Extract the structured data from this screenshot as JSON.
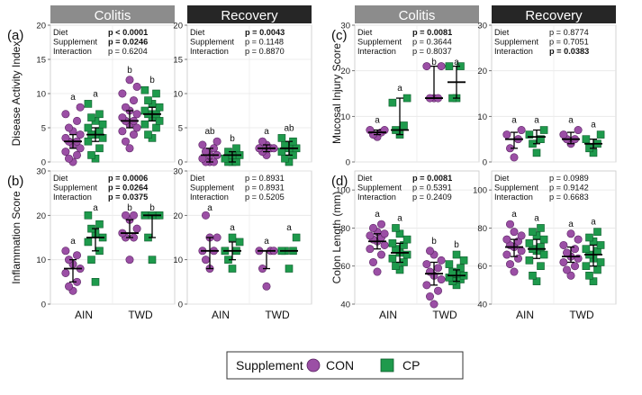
{
  "colors": {
    "con": "#9b4fa5",
    "con_edge": "#5a2363",
    "cp": "#1e9a4c",
    "cp_edge": "#0c5a2a",
    "colitis_header": "#8c8c8c",
    "recovery_header": "#262626"
  },
  "headers": {
    "colitis": "Colitis",
    "recovery": "Recovery"
  },
  "x_groups": [
    "AIN",
    "TWD"
  ],
  "legend": {
    "title": "Supplement",
    "con": "CON",
    "cp": "CP"
  },
  "chart_data": [
    {
      "id": "dai",
      "panel_label": "(a)",
      "type": "scatter",
      "ylabel": "Disease Activity Index",
      "ylim": [
        0,
        20
      ],
      "yticks": [
        0,
        5,
        10,
        15,
        20
      ],
      "stats": {
        "colitis": [
          {
            "label": "Diet",
            "value": "p < 0.0001",
            "style": "bold-italic"
          },
          {
            "label": "Supplement",
            "value": "p = 0.0246",
            "style": "bold-italic"
          },
          {
            "label": "Interaction",
            "value": "p = 0.6204",
            "style": "italic"
          }
        ],
        "recovery": [
          {
            "label": "Diet",
            "value": "p = 0.0043",
            "style": "bold"
          },
          {
            "label": "Supplement",
            "value": "p = 0.1148",
            "style": "normal"
          },
          {
            "label": "Interaction",
            "value": "p = 0.8870",
            "style": "normal"
          }
        ]
      },
      "series": {
        "colitis": [
          {
            "diet": "AIN",
            "supp": "CON",
            "median": 3,
            "q1": 2,
            "q3": 4,
            "letter": "a",
            "values": [
              0,
              0.5,
              1,
              1.5,
              2,
              2.5,
              3,
              3,
              3.5,
              4,
              4.5,
              5,
              6,
              7,
              8
            ]
          },
          {
            "diet": "AIN",
            "supp": "CP",
            "median": 4,
            "q1": 3,
            "q3": 5,
            "letter": "a",
            "values": [
              0.5,
              1,
              2,
              3,
              3.5,
              4,
              4,
              4.5,
              5,
              5.5,
              6,
              6.5,
              7,
              8.5
            ]
          },
          {
            "diet": "TWD",
            "supp": "CON",
            "median": 6,
            "q1": 5,
            "q3": 7.5,
            "letter": "b",
            "values": [
              2,
              3,
              4,
              4.5,
              5,
              5.5,
              6,
              6,
              6.5,
              7,
              7.5,
              8,
              9,
              10,
              11,
              12
            ]
          },
          {
            "diet": "TWD",
            "supp": "CP",
            "median": 7,
            "q1": 6,
            "q3": 8,
            "letter": "b",
            "values": [
              3.5,
              4,
              5,
              5.5,
              6,
              6.5,
              7,
              7,
              7.5,
              8,
              8.5,
              9,
              10,
              10.5
            ]
          }
        ],
        "recovery": [
          {
            "diet": "AIN",
            "supp": "CON",
            "median": 1,
            "q1": 0,
            "q3": 2,
            "letter": "ab",
            "values": [
              0,
              0,
              0,
              0.5,
              1,
              1,
              1.5,
              2,
              2.5,
              3
            ]
          },
          {
            "diet": "AIN",
            "supp": "CP",
            "median": 1,
            "q1": 0,
            "q3": 1.5,
            "letter": "b",
            "values": [
              0,
              0,
              0,
              0.5,
              1,
              1,
              1.5,
              2
            ]
          },
          {
            "diet": "TWD",
            "supp": "CON",
            "median": 2,
            "q1": 1.5,
            "q3": 2.5,
            "letter": "a",
            "values": [
              1,
              1.5,
              2,
              2,
              2,
              2.5,
              3
            ]
          },
          {
            "diet": "TWD",
            "supp": "CP",
            "median": 2,
            "q1": 1,
            "q3": 3,
            "letter": "ab",
            "values": [
              0,
              0.5,
              1,
              1.5,
              2,
              2,
              2.5,
              3,
              3.5
            ]
          }
        ]
      }
    },
    {
      "id": "inflam",
      "panel_label": "(b)",
      "type": "scatter",
      "ylabel": "Inflammation Score",
      "ylim": [
        0,
        30
      ],
      "yticks": [
        0,
        10,
        20,
        30
      ],
      "stats": {
        "colitis": [
          {
            "label": "Diet",
            "value": "p = 0.0006",
            "style": "bold"
          },
          {
            "label": "Supplement",
            "value": "p = 0.0264",
            "style": "bold"
          },
          {
            "label": "Interaction",
            "value": "p = 0.0375",
            "style": "bold"
          }
        ],
        "recovery": [
          {
            "label": "Diet",
            "value": "p = 0.8931",
            "style": "normal"
          },
          {
            "label": "Supplement",
            "value": "p = 0.8931",
            "style": "normal"
          },
          {
            "label": "Interaction",
            "value": "p = 0.5205",
            "style": "normal"
          }
        ]
      },
      "series": {
        "colitis": [
          {
            "diet": "AIN",
            "supp": "CON",
            "median": 8,
            "q1": 5,
            "q3": 10,
            "letter": "a",
            "values": [
              3,
              4,
              5,
              7,
              8,
              9,
              10,
              11,
              12
            ]
          },
          {
            "diet": "AIN",
            "supp": "CP",
            "median": 15,
            "q1": 12,
            "q3": 17,
            "letter": "a",
            "values": [
              5,
              10,
              12,
              14,
              15,
              16,
              17,
              18,
              20
            ]
          },
          {
            "diet": "TWD",
            "supp": "CON",
            "median": 16,
            "q1": 15,
            "q3": 19,
            "letter": "b",
            "values": [
              10,
              15,
              15,
              16,
              17,
              19,
              20,
              20
            ]
          },
          {
            "diet": "TWD",
            "supp": "CP",
            "median": 20,
            "q1": 15,
            "q3": 20,
            "letter": "b",
            "values": [
              10,
              15,
              20,
              20,
              20,
              20
            ]
          }
        ],
        "recovery": [
          {
            "diet": "AIN",
            "supp": "CON",
            "median": 12,
            "q1": 8,
            "q3": 15,
            "letter": "a",
            "values": [
              8,
              10,
              12,
              12,
              15,
              15,
              20
            ]
          },
          {
            "diet": "AIN",
            "supp": "CP",
            "median": 12,
            "q1": 10,
            "q3": 14,
            "letter": "a",
            "values": [
              8,
              10,
              12,
              12,
              14,
              15
            ]
          },
          {
            "diet": "TWD",
            "supp": "CON",
            "median": 12,
            "q1": 8,
            "q3": 12,
            "letter": "a",
            "values": [
              4,
              8,
              12,
              12,
              12
            ]
          },
          {
            "diet": "TWD",
            "supp": "CP",
            "median": 12,
            "q1": 12,
            "q3": 12,
            "letter": "a",
            "values": [
              8,
              12,
              12,
              12,
              15
            ]
          }
        ]
      }
    },
    {
      "id": "mucosal",
      "panel_label": "(c)",
      "type": "scatter",
      "ylabel": "Mucosal Injury Score",
      "ylim": [
        0,
        30
      ],
      "yticks": [
        0,
        10,
        20,
        30
      ],
      "stats": {
        "colitis": [
          {
            "label": "Diet",
            "value": "p = 0.0081",
            "style": "bold"
          },
          {
            "label": "Supplement",
            "value": "p = 0.3644",
            "style": "normal"
          },
          {
            "label": "Interaction",
            "value": "p = 0.8037",
            "style": "normal"
          }
        ],
        "recovery": [
          {
            "label": "Diet",
            "value": "p = 0.8774",
            "style": "normal"
          },
          {
            "label": "Supplement",
            "value": "p = 0.7051",
            "style": "normal"
          },
          {
            "label": "Interaction",
            "value": "p = 0.0383",
            "style": "bold"
          }
        ]
      },
      "series": {
        "colitis": [
          {
            "diet": "AIN",
            "supp": "CON",
            "median": 6.5,
            "q1": 6,
            "q3": 7,
            "letter": "a",
            "values": [
              5.5,
              6,
              6.5,
              7,
              7
            ]
          },
          {
            "diet": "AIN",
            "supp": "CP",
            "median": 7,
            "q1": 6,
            "q3": 14,
            "letter": "a",
            "values": [
              6,
              7,
              8,
              13,
              14
            ]
          },
          {
            "diet": "TWD",
            "supp": "CON",
            "median": 14,
            "q1": 14,
            "q3": 21,
            "letter": "b",
            "values": [
              14,
              14,
              14,
              21,
              21
            ]
          },
          {
            "diet": "TWD",
            "supp": "CP",
            "median": 17.5,
            "q1": 14,
            "q3": 21,
            "letter": "a",
            "values": [
              14,
              14,
              21,
              21
            ]
          }
        ],
        "recovery": [
          {
            "diet": "AIN",
            "supp": "CON",
            "median": 5,
            "q1": 3,
            "q3": 6.5,
            "letter": "a",
            "values": [
              1,
              3,
              5,
              6,
              7
            ]
          },
          {
            "diet": "AIN",
            "supp": "CP",
            "median": 5.5,
            "q1": 4,
            "q3": 7,
            "letter": "a",
            "values": [
              2,
              4,
              5,
              6,
              7
            ]
          },
          {
            "diet": "TWD",
            "supp": "CON",
            "median": 5,
            "q1": 4,
            "q3": 6.5,
            "letter": "a",
            "values": [
              4,
              5,
              5,
              6,
              7
            ]
          },
          {
            "diet": "TWD",
            "supp": "CP",
            "median": 4,
            "q1": 3,
            "q3": 5,
            "letter": "a",
            "values": [
              2,
              3,
              4,
              5,
              6
            ]
          }
        ]
      }
    },
    {
      "id": "colon",
      "panel_label": "(d)",
      "type": "scatter",
      "ylabel": "Colon Length (mm)",
      "ylim": [
        40,
        110
      ],
      "yticks": [
        40,
        60,
        80,
        100
      ],
      "stats": {
        "colitis": [
          {
            "label": "Diet",
            "value": "p = 0.0081",
            "style": "bold"
          },
          {
            "label": "Supplement",
            "value": "p = 0.5391",
            "style": "normal"
          },
          {
            "label": "Interaction",
            "value": "p = 0.2409",
            "style": "normal"
          }
        ],
        "recovery": [
          {
            "label": "Diet",
            "value": "p = 0.0989",
            "style": "normal"
          },
          {
            "label": "Supplement",
            "value": "p = 0.9142",
            "style": "normal"
          },
          {
            "label": "Interaction",
            "value": "p = 0.6683",
            "style": "normal"
          }
        ]
      },
      "series": {
        "colitis": [
          {
            "diet": "AIN",
            "supp": "CON",
            "median": 73,
            "q1": 69,
            "q3": 77,
            "letter": "a",
            "values": [
              57,
              62,
              66,
              69,
              71,
              73,
              74,
              75,
              76,
              77,
              78,
              80,
              82
            ]
          },
          {
            "diet": "AIN",
            "supp": "CP",
            "median": 67,
            "q1": 62,
            "q3": 72,
            "letter": "a",
            "values": [
              58,
              60,
              62,
              64,
              66,
              67,
              69,
              71,
              72,
              74,
              77,
              80
            ]
          },
          {
            "diet": "TWD",
            "supp": "CON",
            "median": 56,
            "q1": 50,
            "q3": 62,
            "letter": "b",
            "values": [
              40,
              44,
              47,
              50,
              53,
              55,
              57,
              59,
              61,
              63,
              66,
              68
            ]
          },
          {
            "diet": "TWD",
            "supp": "CP",
            "median": 55,
            "q1": 52,
            "q3": 58,
            "letter": "b",
            "values": [
              50,
              52,
              53,
              54,
              55,
              56,
              57,
              59,
              61,
              63,
              66
            ]
          }
        ],
        "recovery": [
          {
            "diet": "AIN",
            "supp": "CON",
            "median": 70,
            "q1": 65,
            "q3": 74,
            "letter": "a",
            "values": [
              57,
              61,
              64,
              66,
              68,
              70,
              71,
              73,
              74,
              76,
              78,
              82
            ]
          },
          {
            "diet": "AIN",
            "supp": "CP",
            "median": 69,
            "q1": 64,
            "q3": 74,
            "letter": "a",
            "values": [
              52,
              55,
              60,
              63,
              66,
              68,
              69,
              70,
              72,
              74,
              76,
              78,
              80
            ]
          },
          {
            "diet": "TWD",
            "supp": "CON",
            "median": 65,
            "q1": 62,
            "q3": 70,
            "letter": "a",
            "values": [
              55,
              58,
              60,
              62,
              64,
              65,
              67,
              69,
              71,
              74,
              77
            ]
          },
          {
            "diet": "TWD",
            "supp": "CP",
            "median": 66,
            "q1": 60,
            "q3": 71,
            "letter": "a",
            "values": [
              52,
              55,
              58,
              60,
              62,
              64,
              66,
              68,
              69,
              71,
              73,
              75,
              78
            ]
          }
        ]
      }
    }
  ]
}
